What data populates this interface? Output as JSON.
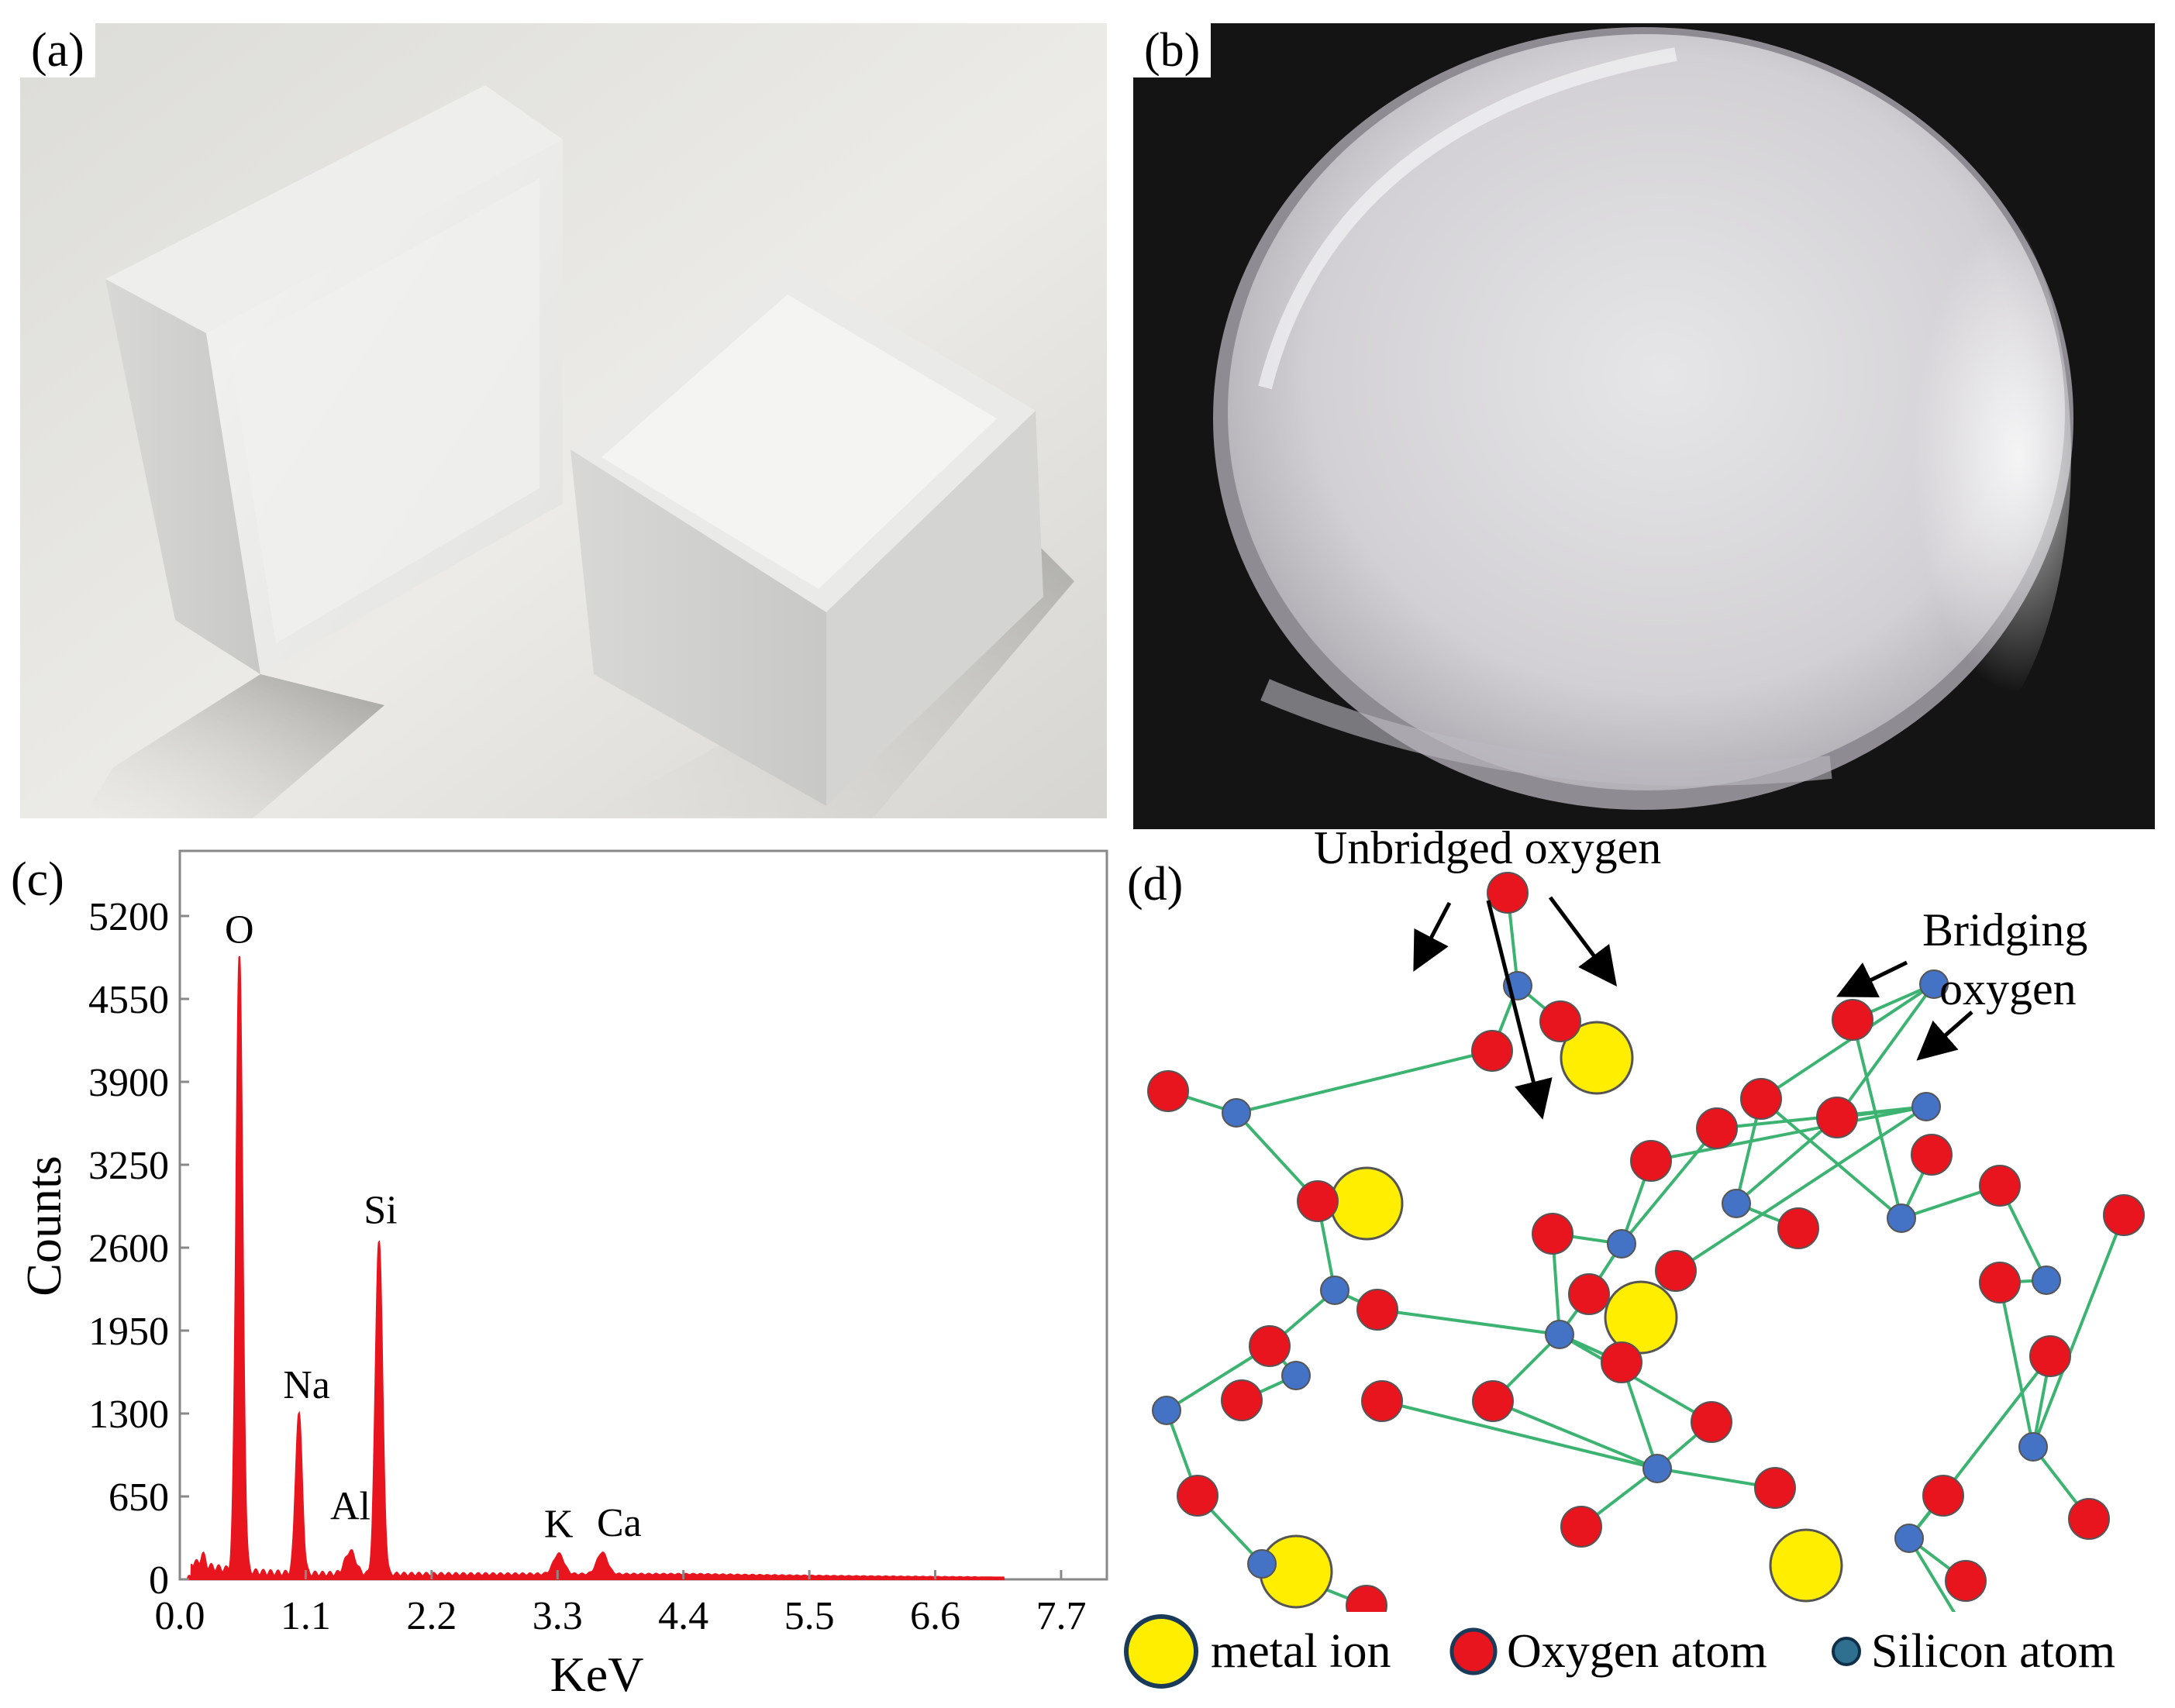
{
  "panels": {
    "a": {
      "label": "(a)"
    },
    "b": {
      "label": "(b)"
    },
    "c": {
      "label": "(c)"
    },
    "d": {
      "label": "(d)"
    }
  },
  "chart_data": {
    "type": "line",
    "xlabel": "KeV",
    "ylabel": "Counts",
    "xlim": [
      0,
      8.1
    ],
    "ylim": [
      0,
      5200
    ],
    "x_ticks": [
      0.0,
      1.1,
      2.2,
      3.3,
      4.4,
      5.5,
      6.6,
      7.7
    ],
    "x_tick_labels": [
      "0.0",
      "1.1",
      "2.2",
      "3.3",
      "4.4",
      "5.5",
      "6.6",
      "7.7"
    ],
    "y_ticks": [
      0,
      650,
      1300,
      1950,
      2600,
      3250,
      3900,
      4550,
      5200
    ],
    "y_tick_labels": [
      "0",
      "650",
      "1300",
      "1950",
      "2600",
      "3250",
      "3900",
      "4550",
      "5200"
    ],
    "color": "#e8141e",
    "peaks": [
      {
        "element": "O",
        "x": 0.52,
        "y": 4820
      },
      {
        "element": "Na",
        "x": 1.04,
        "y": 1250
      },
      {
        "element": "Al",
        "x": 1.49,
        "y": 180
      },
      {
        "element": "Si",
        "x": 1.74,
        "y": 2620
      },
      {
        "element": "K",
        "x": 3.31,
        "y": 160
      },
      {
        "element": "Ca",
        "x": 3.69,
        "y": 170
      }
    ],
    "baseline": 40,
    "grid": false,
    "legend": "none"
  },
  "diagram": {
    "annotations": {
      "unbridged": "Unbridged oxygen",
      "bridging_line1": "Bridging",
      "bridging_line2": "oxygen"
    },
    "colors": {
      "oxygen": "#e8141e",
      "silicon": "#4472c4",
      "metal": "#ffee00",
      "bond": "#3cb371"
    },
    "legend": [
      {
        "label": "metal ion",
        "icon": "metal-ion-icon"
      },
      {
        "label": "Oxygen atom",
        "icon": "oxygen-atom-icon"
      },
      {
        "label": "Silicon atom",
        "icon": "silicon-atom-icon"
      }
    ]
  }
}
